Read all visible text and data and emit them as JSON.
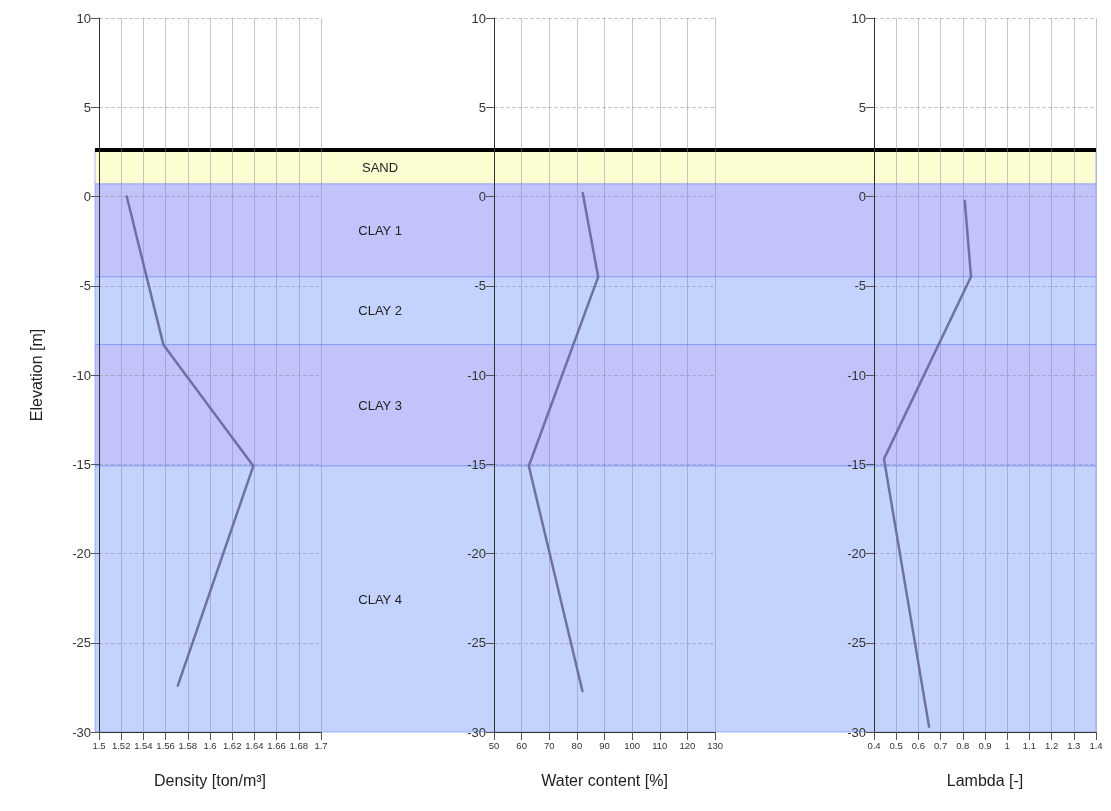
{
  "chart_data": [
    {
      "type": "line",
      "xlabel": "Density [ton/m³]",
      "ylabel": "Elevation [m]",
      "xlim": [
        1.5,
        1.7
      ],
      "xticks": [
        1.5,
        1.52,
        1.54,
        1.56,
        1.58,
        1.6,
        1.62,
        1.64,
        1.66,
        1.68,
        1.7
      ],
      "ylim": [
        -30,
        10
      ],
      "yticks": [
        -30,
        -25,
        -20,
        -15,
        -10,
        -5,
        0,
        5,
        10
      ],
      "grid": true,
      "line_style": "solid",
      "marker": "none",
      "series": [
        {
          "color": "#6e70a6",
          "x": [
            1.525,
            1.558,
            1.639,
            1.571
          ],
          "values": [
            0,
            -8.3,
            -15.1,
            -27.4
          ]
        }
      ],
      "ref_lines": [
        {
          "axis": "y",
          "value": 2.6,
          "color": "#000000",
          "line_style": "solid"
        }
      ],
      "bands": [
        {
          "axis": "y",
          "from": 0.7,
          "to": 2.6,
          "label": "SAND",
          "color": "#fdfdd2"
        },
        {
          "axis": "y",
          "from": -4.5,
          "to": 0.7,
          "label": "CLAY 1",
          "color": "#c3c3fb"
        },
        {
          "axis": "y",
          "from": -8.3,
          "to": -4.5,
          "label": "CLAY 2",
          "color": "#c3d3fd"
        },
        {
          "axis": "y",
          "from": -15.1,
          "to": -8.3,
          "label": "CLAY 3",
          "color": "#c3c3fb"
        },
        {
          "axis": "y",
          "from": -30,
          "to": -15.1,
          "label": "CLAY 4",
          "color": "#c3d3fd"
        }
      ]
    },
    {
      "type": "line",
      "xlabel": "Water content [%]",
      "xlim": [
        50,
        130
      ],
      "xticks": [
        50,
        60,
        70,
        80,
        90,
        100,
        110,
        120,
        130
      ],
      "ylim": [
        -30,
        10
      ],
      "yticks": [
        -30,
        -25,
        -20,
        -15,
        -10,
        -5,
        0,
        5,
        10
      ],
      "grid": true,
      "line_style": "solid",
      "marker": "none",
      "series": [
        {
          "color": "#6e70a6",
          "x": [
            82.1,
            87.7,
            62.6,
            82
          ],
          "values": [
            0.2,
            -4.5,
            -15.1,
            -27.7
          ]
        }
      ]
    },
    {
      "type": "line",
      "xlabel": "Lambda [-]",
      "xlim": [
        0.4,
        1.4
      ],
      "xticks": [
        0.4,
        0.5,
        0.6,
        0.7,
        0.8,
        0.9,
        1,
        1.1,
        1.2,
        1.3,
        1.4
      ],
      "ylim": [
        -30,
        10
      ],
      "yticks": [
        -30,
        -25,
        -20,
        -15,
        -10,
        -5,
        0,
        5,
        10
      ],
      "grid": true,
      "line_style": "solid",
      "marker": "none",
      "series": [
        {
          "color": "#6e70a6",
          "x": [
            0.809,
            0.837,
            0.445,
            0.648
          ],
          "values": [
            -0.25,
            -4.5,
            -14.7,
            -29.7
          ]
        }
      ]
    }
  ]
}
